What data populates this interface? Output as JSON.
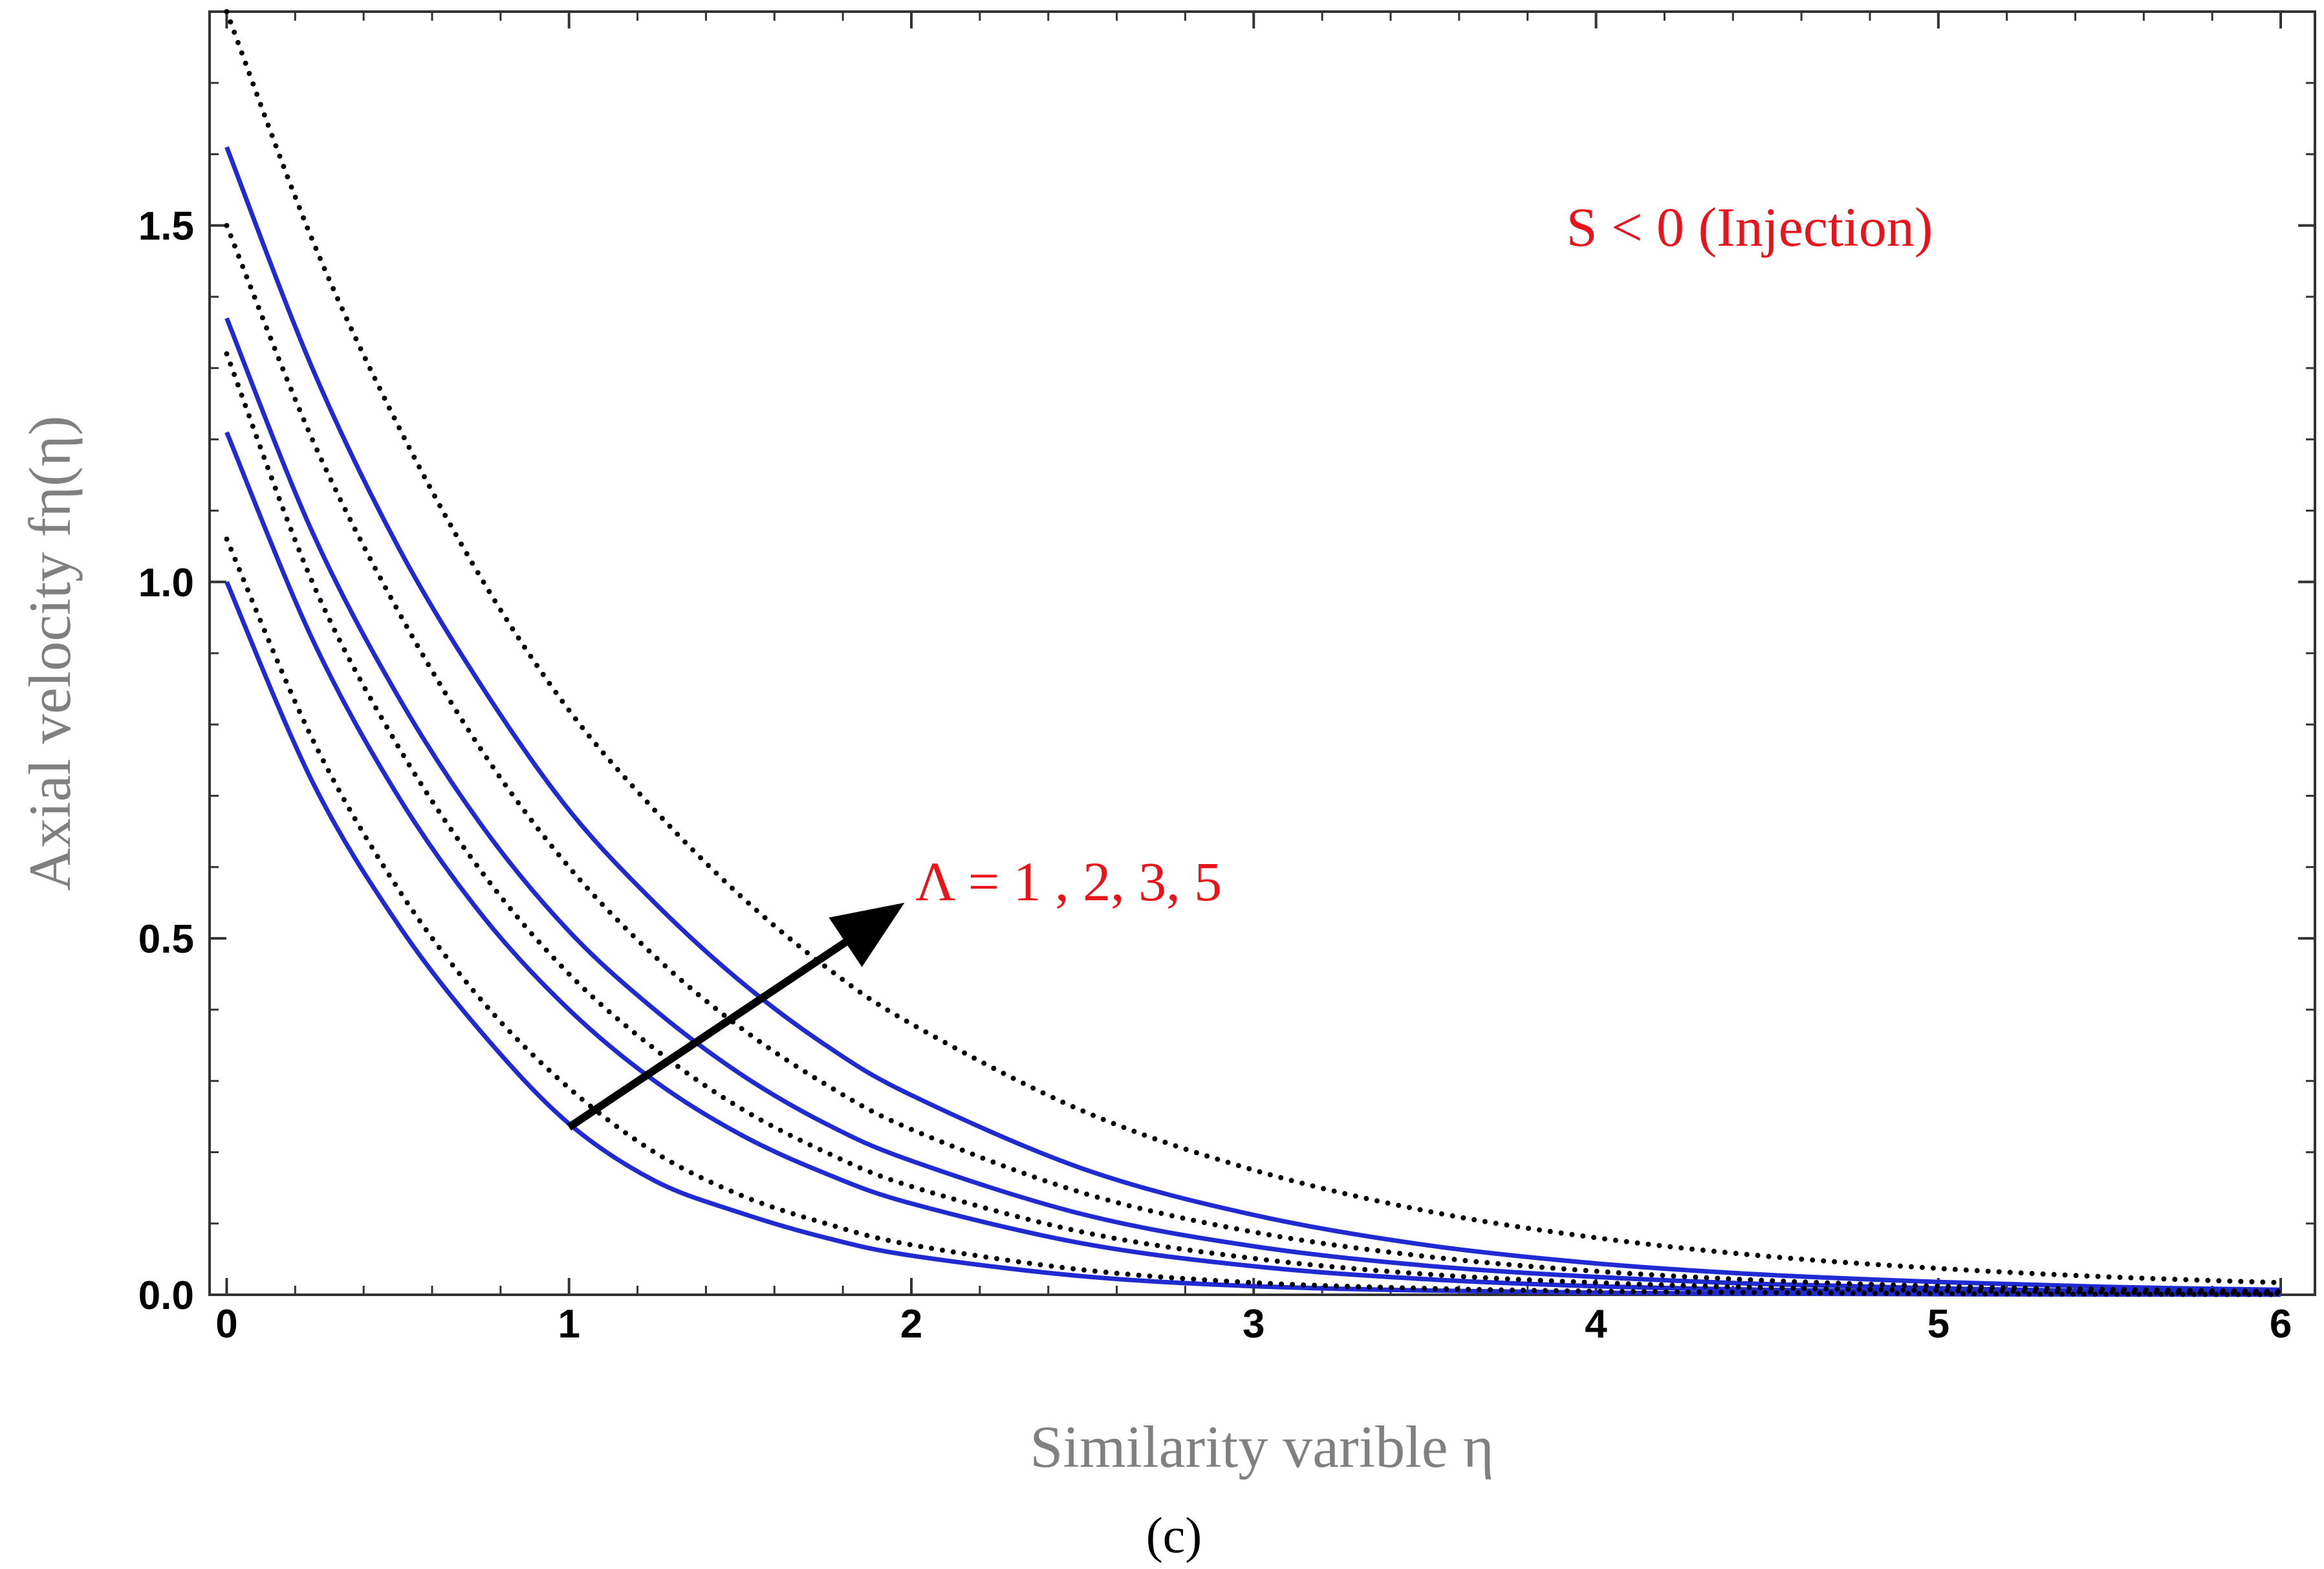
{
  "chart_data": {
    "type": "line",
    "xlabel": "Similarity varible η",
    "ylabel": "Axial velocity fη(η)",
    "xlim": [
      -0.05,
      6.1
    ],
    "ylim": [
      0,
      1.8
    ],
    "xticks": [
      {
        "value": 0,
        "label": "0"
      },
      {
        "value": 1,
        "label": "1"
      },
      {
        "value": 2,
        "label": "2"
      },
      {
        "value": 3,
        "label": "3"
      },
      {
        "value": 4,
        "label": "4"
      },
      {
        "value": 5,
        "label": "5"
      },
      {
        "value": 6,
        "label": "6"
      }
    ],
    "yticks": [
      {
        "value": 0,
        "label": "0.0"
      },
      {
        "value": 0.5,
        "label": "0.5"
      },
      {
        "value": 1,
        "label": "1.0"
      },
      {
        "value": 1.5,
        "label": "1.5"
      }
    ],
    "grid": false,
    "solid_color": "#1f2bd1",
    "dotted_color": "#000000",
    "series": [
      {
        "style": "solid",
        "x": [
          0,
          0.25,
          0.5,
          0.75,
          1,
          1.25,
          1.5,
          1.75,
          2,
          2.5,
          3,
          3.5,
          4,
          4.5,
          5,
          5.5,
          6
        ],
        "y": [
          1.0,
          0.72,
          0.52,
          0.365,
          0.24,
          0.16,
          0.115,
          0.08,
          0.055,
          0.026,
          0.012,
          0.006,
          0.003,
          0.0015,
          0.0008,
          0.0004,
          0.0002
        ]
      },
      {
        "style": "solid",
        "x": [
          0,
          0.25,
          0.5,
          0.75,
          1,
          1.25,
          1.5,
          1.75,
          2,
          2.5,
          3,
          3.5,
          4,
          4.5,
          5,
          5.5,
          6
        ],
        "y": [
          1.21,
          0.92,
          0.7,
          0.53,
          0.4,
          0.3,
          0.225,
          0.17,
          0.128,
          0.072,
          0.04,
          0.022,
          0.012,
          0.007,
          0.004,
          0.002,
          0.001
        ]
      },
      {
        "style": "solid",
        "x": [
          0,
          0.25,
          0.5,
          0.75,
          1,
          1.25,
          1.5,
          1.75,
          2,
          2.5,
          3,
          3.5,
          4,
          4.5,
          5,
          5.5,
          6
        ],
        "y": [
          1.37,
          1.07,
          0.84,
          0.655,
          0.51,
          0.4,
          0.31,
          0.24,
          0.188,
          0.113,
          0.068,
          0.041,
          0.025,
          0.015,
          0.009,
          0.005,
          0.003
        ]
      },
      {
        "style": "solid",
        "x": [
          0,
          0.25,
          0.5,
          0.75,
          1,
          1.25,
          1.5,
          1.75,
          2,
          2.5,
          3,
          3.5,
          4,
          4.5,
          5,
          5.5,
          6
        ],
        "y": [
          1.61,
          1.3,
          1.05,
          0.85,
          0.68,
          0.55,
          0.44,
          0.35,
          0.28,
          0.177,
          0.112,
          0.07,
          0.044,
          0.028,
          0.018,
          0.011,
          0.007
        ]
      },
      {
        "style": "dotted",
        "x": [
          0,
          0.25,
          0.5,
          0.75,
          1,
          1.25,
          1.5,
          1.75,
          2,
          2.5,
          3,
          3.5,
          4,
          4.5,
          5,
          5.5,
          6
        ],
        "y": [
          1.06,
          0.78,
          0.57,
          0.41,
          0.29,
          0.2,
          0.14,
          0.1,
          0.07,
          0.035,
          0.017,
          0.009,
          0.005,
          0.003,
          0.0015,
          0.0008,
          0.0004
        ]
      },
      {
        "style": "dotted",
        "x": [
          0,
          0.25,
          0.5,
          0.75,
          1,
          1.25,
          1.5,
          1.75,
          2,
          2.5,
          3,
          3.5,
          4,
          4.5,
          5,
          5.5,
          6
        ],
        "y": [
          1.32,
          1.0,
          0.77,
          0.59,
          0.45,
          0.345,
          0.262,
          0.2,
          0.152,
          0.088,
          0.051,
          0.029,
          0.017,
          0.01,
          0.006,
          0.0035,
          0.002
        ]
      },
      {
        "style": "dotted",
        "x": [
          0,
          0.25,
          0.5,
          0.75,
          1,
          1.25,
          1.5,
          1.75,
          2,
          2.5,
          3,
          3.5,
          4,
          4.5,
          5,
          5.5,
          6
        ],
        "y": [
          1.5,
          1.2,
          0.96,
          0.76,
          0.6,
          0.475,
          0.375,
          0.295,
          0.232,
          0.143,
          0.088,
          0.054,
          0.033,
          0.02,
          0.012,
          0.0075,
          0.0046
        ]
      },
      {
        "style": "dotted",
        "x": [
          0,
          0.25,
          0.5,
          0.75,
          1,
          1.25,
          1.5,
          1.75,
          2,
          2.5,
          3,
          3.5,
          4,
          4.5,
          5,
          5.5,
          6
        ],
        "y": [
          1.8,
          1.48,
          1.22,
          1.0,
          0.82,
          0.68,
          0.56,
          0.46,
          0.38,
          0.258,
          0.175,
          0.118,
          0.08,
          0.054,
          0.037,
          0.025,
          0.017
        ]
      }
    ],
    "arrow": {
      "from": [
        1.0,
        0.235
      ],
      "to": [
        1.98,
        0.55
      ],
      "color": "#000000"
    },
    "annotations": [
      {
        "text": "S < 0 (Injection)",
        "position": "top-right"
      },
      {
        "text": "Λ =  1 , 2,  3, 5",
        "position": "arrow-tip"
      }
    ]
  },
  "caption": "(c)"
}
